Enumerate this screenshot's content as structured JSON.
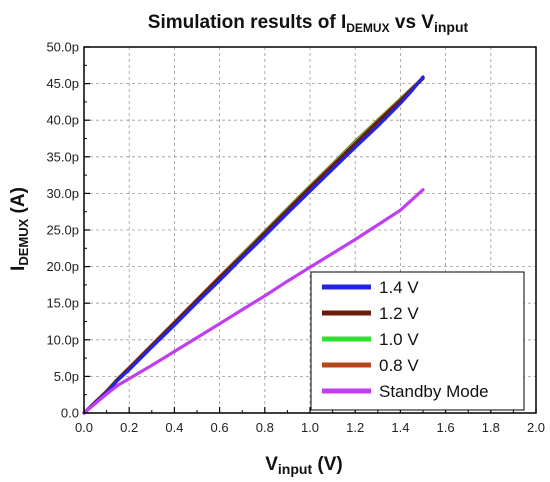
{
  "chart_data": {
    "type": "line",
    "title": {
      "prefix": "Simulation results of I",
      "prefix_sub": "DEMUX",
      "middle": " vs V",
      "middle_sub": "input"
    },
    "xlabel": {
      "main": "V",
      "sub": "input",
      "unit": " (V)"
    },
    "ylabel": {
      "main": "I",
      "sub": "DEMUX",
      "unit": " (A)"
    },
    "xlim": [
      0,
      2.0
    ],
    "ylim": [
      0,
      50
    ],
    "xticks": [
      {
        "value": 0.0,
        "label": "0.0"
      },
      {
        "value": 0.2,
        "label": "0.2"
      },
      {
        "value": 0.4,
        "label": "0.4"
      },
      {
        "value": 0.6,
        "label": "0.6"
      },
      {
        "value": 0.8,
        "label": "0.8"
      },
      {
        "value": 1.0,
        "label": "1.0"
      },
      {
        "value": 1.2,
        "label": "1.2"
      },
      {
        "value": 1.4,
        "label": "1.4"
      },
      {
        "value": 1.6,
        "label": "1.6"
      },
      {
        "value": 1.8,
        "label": "1.8"
      },
      {
        "value": 2.0,
        "label": "2.0"
      }
    ],
    "yticks": [
      {
        "value": 0,
        "label": "0.0"
      },
      {
        "value": 5,
        "label": "5.0p"
      },
      {
        "value": 10,
        "label": "10.0p"
      },
      {
        "value": 15,
        "label": "15.0p"
      },
      {
        "value": 20,
        "label": "20.0p"
      },
      {
        "value": 25,
        "label": "25.0p"
      },
      {
        "value": 30,
        "label": "30.0p"
      },
      {
        "value": 35,
        "label": "35.0p"
      },
      {
        "value": 40,
        "label": "40.0p"
      },
      {
        "value": 45,
        "label": "45.0p"
      },
      {
        "value": 50,
        "label": "50.0p"
      }
    ],
    "grid": true,
    "legend_position": "bottom-right",
    "series": [
      {
        "name": "0.8 V",
        "color": "#b5451b",
        "x": [
          0,
          0.05,
          0.1,
          0.15,
          0.2,
          0.3,
          0.4,
          0.5,
          0.6,
          0.7,
          0.8,
          0.9,
          1.0,
          1.1,
          1.2,
          1.3,
          1.4,
          1.5
        ],
        "y": [
          0,
          1.5,
          3.0,
          4.7,
          6.2,
          9.3,
          12.4,
          15.5,
          18.6,
          21.7,
          24.8,
          27.9,
          31.0,
          34.0,
          37.1,
          40.0,
          42.9,
          45.8
        ]
      },
      {
        "name": "1.0 V",
        "color": "#33dd33",
        "x": [
          0,
          0.05,
          0.1,
          0.15,
          0.2,
          0.3,
          0.4,
          0.5,
          0.6,
          0.7,
          0.8,
          0.9,
          1.0,
          1.1,
          1.2,
          1.3,
          1.4,
          1.5
        ],
        "y": [
          0,
          1.5,
          2.9,
          4.6,
          6.1,
          9.2,
          12.3,
          15.4,
          18.5,
          21.6,
          24.7,
          27.8,
          30.9,
          33.9,
          37.0,
          39.9,
          42.8,
          45.7
        ]
      },
      {
        "name": "1.2 V",
        "color": "#6b1a0c",
        "x": [
          0,
          0.05,
          0.1,
          0.15,
          0.2,
          0.3,
          0.4,
          0.5,
          0.6,
          0.7,
          0.8,
          0.9,
          1.0,
          1.1,
          1.2,
          1.3,
          1.4,
          1.5
        ],
        "y": [
          0,
          1.5,
          2.9,
          4.6,
          6.1,
          9.2,
          12.3,
          15.4,
          18.5,
          21.5,
          24.6,
          27.7,
          30.8,
          33.8,
          36.8,
          39.8,
          42.7,
          45.7
        ]
      },
      {
        "name": "1.4 V",
        "color": "#2424e0",
        "x": [
          0,
          0.05,
          0.1,
          0.15,
          0.2,
          0.3,
          0.4,
          0.5,
          0.6,
          0.7,
          0.8,
          0.9,
          1.0,
          1.1,
          1.2,
          1.3,
          1.4,
          1.45,
          1.5
        ],
        "y": [
          0,
          1.4,
          2.8,
          4.5,
          5.9,
          9.0,
          12.0,
          15.1,
          18.1,
          21.2,
          24.2,
          27.3,
          30.3,
          33.3,
          36.3,
          39.2,
          42.3,
          44.0,
          45.9
        ]
      },
      {
        "name": "Standby Mode",
        "color": "#c03ef0",
        "x": [
          0,
          0.05,
          0.1,
          0.15,
          0.2,
          0.3,
          0.4,
          0.5,
          0.6,
          0.7,
          0.8,
          0.9,
          1.0,
          1.1,
          1.2,
          1.3,
          1.4,
          1.5
        ],
        "y": [
          0,
          1.3,
          2.6,
          3.8,
          4.7,
          6.5,
          8.4,
          10.3,
          12.2,
          14.1,
          16.0,
          18.0,
          19.9,
          21.8,
          23.7,
          25.7,
          27.7,
          30.5
        ]
      }
    ],
    "legend_order": [
      "1.4 V",
      "1.2 V",
      "1.0 V",
      "0.8 V",
      "Standby Mode"
    ]
  }
}
